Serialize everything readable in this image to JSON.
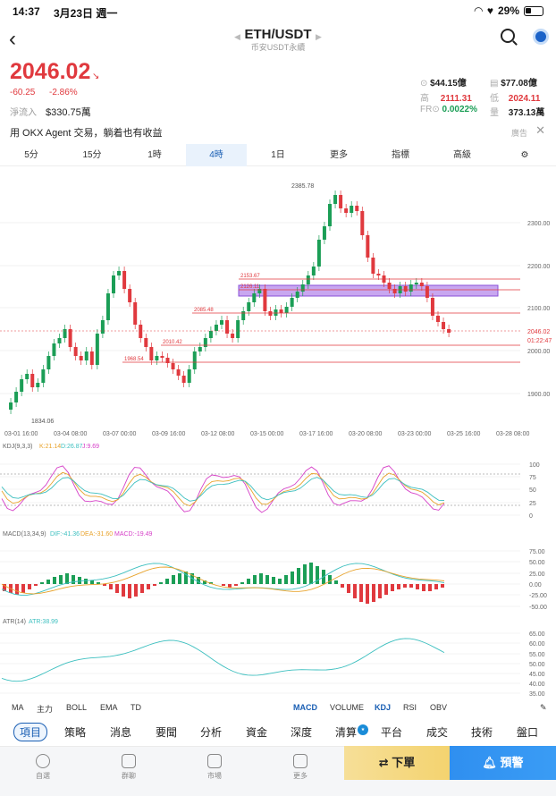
{
  "status": {
    "time": "14:37",
    "date": "3月23日 週一",
    "battery": "29%"
  },
  "nav": {
    "title": "ETH/USDT",
    "subtitle": "币安USDT永續"
  },
  "quote": {
    "price": "2046.02",
    "change": "-60.25",
    "change_pct": "-2.86%",
    "netflow_label": "淨流入",
    "netflow_value": "$330.75萬",
    "stats": [
      {
        "icon": "amount",
        "value": "$44.15億",
        "color": "plain"
      },
      {
        "icon": "market-cap",
        "value": "$77.08億",
        "color": "plain"
      },
      {
        "label": "高",
        "value": "2111.31",
        "color": "red"
      },
      {
        "label": "低",
        "value": "2024.11",
        "color": "red"
      },
      {
        "label": "FR",
        "value": "0.0022%",
        "color": "green"
      },
      {
        "label": "量",
        "value": "373.13萬",
        "color": "plain"
      }
    ]
  },
  "ad": {
    "text": "用 OKX Agent 交易，躺着也有收益",
    "tag": "廣告"
  },
  "timeframes": [
    "5分",
    "15分",
    "1時",
    "4時",
    "1日",
    "更多",
    "指標",
    "高級"
  ],
  "active_timeframe": "4時",
  "chart": {
    "y_ticks": [
      "2300.00",
      "2200.00",
      "2100.00",
      "2000.00",
      "1900.00"
    ],
    "x_ticks": [
      "03-01 16:00",
      "03-04 08:00",
      "03-07 00:00",
      "03-09 16:00",
      "03-12 08:00",
      "03-15 00:00",
      "03-17 16:00",
      "03-20 08:00",
      "03-23 00:00",
      "03-25 16:00",
      "03-28 08:00"
    ],
    "high_label": "2385.78",
    "low_label": "1834.06",
    "levels": [
      "2153.67",
      "2126.11",
      "2085.48",
      "2010.42",
      "1968.54"
    ],
    "last_price": "2046.02",
    "countdown": "01:22:47",
    "kdj_label": "KDJ(9,3,3)",
    "kdj_k": "K:21.14",
    "kdj_d": "D:26.87",
    "kdj_j": "J:9.69",
    "kdj_ticks": [
      "100",
      "75",
      "50",
      "25",
      "0"
    ],
    "macd_label": "MACD(13,34,9)",
    "macd_dif": "DIF:-41.36",
    "macd_dea": "DEA:-31.60",
    "macd_val": "MACD:-19.49",
    "macd_ticks": [
      "75.00",
      "50.00",
      "25.00",
      "0.00",
      "-25.00",
      "-50.00"
    ],
    "atr_label": "ATR(14)",
    "atr_val": "ATR:38.99",
    "atr_ticks": [
      "65.00",
      "60.00",
      "55.00",
      "50.00",
      "45.00",
      "40.00",
      "35.00"
    ]
  },
  "indicators_main": [
    "MA",
    "主力",
    "BOLL",
    "EMA",
    "TD"
  ],
  "indicators_sub": [
    "MACD",
    "VOLUME",
    "KDJ",
    "RSI",
    "OBV"
  ],
  "categories": [
    "項目",
    "策略",
    "消息",
    "要聞",
    "分析",
    "資金",
    "深度",
    "清算",
    "平台",
    "成交",
    "技術",
    "盤口"
  ],
  "bottom_tabs": [
    "自選",
    "群聊",
    "市場",
    "更多"
  ],
  "actions": {
    "buy": "下單",
    "alert": "預警"
  },
  "colors": {
    "up": "#1b9e56",
    "down": "#e0393e",
    "accent": "#1a5fb4",
    "zone": "#c8a7f0"
  }
}
